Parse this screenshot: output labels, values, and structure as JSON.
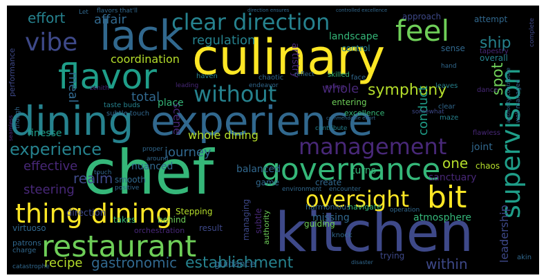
{
  "colors": {
    "background": "#000000",
    "frame": "#ffffff",
    "palette": [
      "#fde725",
      "#b5de2b",
      "#6ece58",
      "#35b779",
      "#1f9e89",
      "#26828e",
      "#31688e",
      "#3e4989",
      "#482878",
      "#440154"
    ]
  },
  "words": [
    {
      "text": "culinary",
      "color": "#fde725",
      "orient": "h"
    },
    {
      "text": "chef",
      "color": "#35b779",
      "orient": "h"
    },
    {
      "text": "kitchen",
      "color": "#3e4989",
      "orient": "h"
    },
    {
      "text": "dining",
      "color": "#26828e",
      "orient": "h"
    },
    {
      "text": "experience",
      "color": "#31688e",
      "orient": "h"
    },
    {
      "text": "governance",
      "color": "#35b779",
      "orient": "h"
    },
    {
      "text": "restaurant",
      "color": "#6ece58",
      "orient": "h"
    },
    {
      "text": "lack",
      "color": "#31688e",
      "orient": "h"
    },
    {
      "text": "flavor",
      "color": "#1f9e89",
      "orient": "h"
    },
    {
      "text": "thing dining",
      "color": "#fde725",
      "orient": "h"
    },
    {
      "text": "bit",
      "color": "#fde725",
      "orient": "h"
    },
    {
      "text": "oversight",
      "color": "#fde725",
      "orient": "h"
    },
    {
      "text": "management",
      "color": "#482878",
      "orient": "h"
    },
    {
      "text": "supervision",
      "color": "#1f9e89",
      "orient": "v"
    },
    {
      "text": "clear direction",
      "color": "#26828e",
      "orient": "h"
    },
    {
      "text": "feel",
      "color": "#6ece58",
      "orient": "h"
    },
    {
      "text": "vibe",
      "color": "#3e4989",
      "orient": "h"
    },
    {
      "text": "without",
      "color": "#26828e",
      "orient": "h"
    },
    {
      "text": "establishment",
      "color": "#26828e",
      "orient": "h"
    },
    {
      "text": "experience",
      "color": "#26828e",
      "orient": "h"
    },
    {
      "text": "symphony",
      "color": "#b5de2b",
      "orient": "h"
    },
    {
      "text": "regulation",
      "color": "#26828e",
      "orient": "h"
    },
    {
      "text": "coordination",
      "color": "#b5de2b",
      "orient": "h"
    },
    {
      "text": "effort",
      "color": "#26828e",
      "orient": "h"
    },
    {
      "text": "affair",
      "color": "#31688e",
      "orient": "h"
    },
    {
      "text": "ship",
      "color": "#26828e",
      "orient": "h"
    },
    {
      "text": "landscape",
      "color": "#35b779",
      "orient": "h"
    },
    {
      "text": "gastronomic",
      "color": "#31688e",
      "orient": "h"
    },
    {
      "text": "within",
      "color": "#3e4989",
      "orient": "h"
    },
    {
      "text": "journey",
      "color": "#31688e",
      "orient": "h"
    },
    {
      "text": "realm",
      "color": "#3e4989",
      "orient": "h"
    },
    {
      "text": "steering",
      "color": "#482878",
      "orient": "h"
    },
    {
      "text": "effective",
      "color": "#482878",
      "orient": "h"
    },
    {
      "text": "recipe",
      "color": "#b5de2b",
      "orient": "h"
    },
    {
      "text": "whole dining",
      "color": "#b5de2b",
      "orient": "h"
    },
    {
      "text": "whole",
      "color": "#482878",
      "orient": "h"
    },
    {
      "text": "total",
      "color": "#31688e",
      "orient": "h"
    },
    {
      "text": "meal",
      "color": "#31688e",
      "orient": "v"
    },
    {
      "text": "scene",
      "color": "#482878",
      "orient": "v"
    },
    {
      "text": "conduct",
      "color": "#1f9e89",
      "orient": "v"
    },
    {
      "text": "spot",
      "color": "#6ece58",
      "orient": "v"
    },
    {
      "text": "one",
      "color": "#b5de2b",
      "orient": "h"
    },
    {
      "text": "leadership",
      "color": "#3e4989",
      "orient": "v"
    },
    {
      "text": "finesse",
      "color": "#1f9e89",
      "orient": "h"
    },
    {
      "text": "nuanced",
      "color": "#31688e",
      "orient": "h"
    },
    {
      "text": "balanced",
      "color": "#31688e",
      "orient": "h"
    },
    {
      "text": "direction",
      "color": "#3e4989",
      "orient": "h"
    },
    {
      "text": "guidance",
      "color": "#31688e",
      "orient": "h"
    },
    {
      "text": "place",
      "color": "#35b779",
      "orient": "h"
    },
    {
      "text": "turns",
      "color": "#35b779",
      "orient": "h"
    },
    {
      "text": "joint",
      "color": "#31688e",
      "orient": "h"
    },
    {
      "text": "chaos",
      "color": "#b5de2b",
      "orient": "h"
    },
    {
      "text": "sanctuary",
      "color": "#482878",
      "orient": "h"
    },
    {
      "text": "atmosphere",
      "color": "#35b779",
      "orient": "h"
    },
    {
      "text": "missing",
      "color": "#31688e",
      "orient": "h"
    },
    {
      "text": "guiding",
      "color": "#6ece58",
      "orient": "h"
    },
    {
      "text": "trying",
      "color": "#3e4989",
      "orient": "h"
    },
    {
      "text": "virtuoso",
      "color": "#31688e",
      "orient": "h"
    },
    {
      "text": "takes",
      "color": "#35b779",
      "orient": "h"
    },
    {
      "text": "behind",
      "color": "#6ece58",
      "orient": "h"
    },
    {
      "text": "result",
      "color": "#3e4989",
      "orient": "h"
    },
    {
      "text": "harmonious",
      "color": "#31688e",
      "orient": "h"
    },
    {
      "text": "navigate",
      "color": "#35b779",
      "orient": "h"
    },
    {
      "text": "entering",
      "color": "#6ece58",
      "orient": "h"
    },
    {
      "text": "excellence",
      "color": "#35b779",
      "orient": "h"
    },
    {
      "text": "approach",
      "color": "#3e4989",
      "orient": "h"
    },
    {
      "text": "attempt",
      "color": "#31688e",
      "orient": "h"
    },
    {
      "text": "overall",
      "color": "#26828e",
      "orient": "h"
    },
    {
      "text": "control",
      "color": "#26828e",
      "orient": "h"
    },
    {
      "text": "sense",
      "color": "#31688e",
      "orient": "h"
    },
    {
      "text": "artistry",
      "color": "#482878",
      "orient": "v"
    },
    {
      "text": "Stepping",
      "color": "#b5de2b",
      "orient": "h"
    },
    {
      "text": "smooth",
      "color": "#31688e",
      "orient": "h"
    },
    {
      "text": "create",
      "color": "#31688e",
      "orient": "h"
    },
    {
      "text": "game",
      "color": "#31688e",
      "orient": "h"
    },
    {
      "text": "patrons",
      "color": "#31688e",
      "orient": "h"
    },
    {
      "text": "managing",
      "color": "#3e4989",
      "orient": "v"
    },
    {
      "text": "subtle",
      "color": "#482878",
      "orient": "v"
    },
    {
      "text": "authority",
      "color": "#6ece58",
      "orient": "v"
    },
    {
      "text": "performance",
      "color": "#3e4989",
      "orient": "v"
    },
    {
      "text": "orchestration",
      "color": "#482878",
      "orient": "h"
    },
    {
      "text": "flavors that'll",
      "color": "#31688e",
      "orient": "h"
    },
    {
      "text": "direction ensures",
      "color": "#31688e",
      "orient": "h"
    },
    {
      "text": "controlled excellence",
      "color": "#31688e",
      "orient": "h"
    },
    {
      "text": "commendable effort",
      "color": "#31688e",
      "orient": "h"
    },
    {
      "text": "chaotic",
      "color": "#31688e",
      "orient": "h"
    },
    {
      "text": "subtle touch",
      "color": "#31688e",
      "orient": "h"
    },
    {
      "text": "taste buds",
      "color": "#26828e",
      "orient": "h"
    },
    {
      "text": "haven",
      "color": "#26828e",
      "orient": "h"
    },
    {
      "text": "leading",
      "color": "#482878",
      "orient": "h"
    },
    {
      "text": "endeavor",
      "color": "#31688e",
      "orient": "h"
    },
    {
      "text": "eating",
      "color": "#482878",
      "orient": "h"
    },
    {
      "text": "flawless",
      "color": "#482878",
      "orient": "h"
    },
    {
      "text": "dance",
      "color": "#482878",
      "orient": "h"
    },
    {
      "text": "tapestry",
      "color": "#482878",
      "orient": "h"
    },
    {
      "text": "well managed",
      "color": "#31688e",
      "orient": "v"
    },
    {
      "text": "complete",
      "color": "#3e4989",
      "orient": "v"
    },
    {
      "text": "contribute",
      "color": "#26828e",
      "orient": "h"
    },
    {
      "text": "authority contribute",
      "color": "#31688e",
      "orient": "v"
    },
    {
      "text": "skilled",
      "color": "#35b779",
      "orient": "h"
    },
    {
      "text": "face",
      "color": "#31688e",
      "orient": "h"
    },
    {
      "text": "clear",
      "color": "#31688e",
      "orient": "h"
    },
    {
      "text": "leaves",
      "color": "#26828e",
      "orient": "h"
    },
    {
      "text": "somewhat",
      "color": "#3e4989",
      "orient": "h"
    },
    {
      "text": "maze",
      "color": "#26828e",
      "orient": "h"
    },
    {
      "text": "knock",
      "color": "#31688e",
      "orient": "h"
    },
    {
      "text": "catastrophe",
      "color": "#31688e",
      "orient": "h"
    },
    {
      "text": "charge",
      "color": "#31688e",
      "orient": "h"
    },
    {
      "text": "encounter",
      "color": "#31688e",
      "orient": "h"
    },
    {
      "text": "environment",
      "color": "#31688e",
      "orient": "h"
    },
    {
      "text": "operation",
      "color": "#31688e",
      "orient": "h"
    },
    {
      "text": "akin",
      "color": "#31688e",
      "orient": "h"
    },
    {
      "text": "Let",
      "color": "#31688e",
      "orient": "h"
    },
    {
      "text": "zenith",
      "color": "#482878",
      "orient": "h"
    },
    {
      "text": "though",
      "color": "#31688e",
      "orient": "v"
    },
    {
      "text": "seamless",
      "color": "#482878",
      "orient": "v"
    },
    {
      "text": "proper",
      "color": "#31688e",
      "orient": "h"
    },
    {
      "text": "touch",
      "color": "#31688e",
      "orient": "h"
    },
    {
      "text": "positive",
      "color": "#31688e",
      "orient": "h"
    },
    {
      "text": "around",
      "color": "#31688e",
      "orient": "h"
    },
    {
      "text": "reflect",
      "color": "#31688e",
      "orient": "h"
    },
    {
      "text": "hand",
      "color": "#31688e",
      "orient": "h"
    },
    {
      "text": "disaster",
      "color": "#31688e",
      "orient": "h"
    }
  ]
}
